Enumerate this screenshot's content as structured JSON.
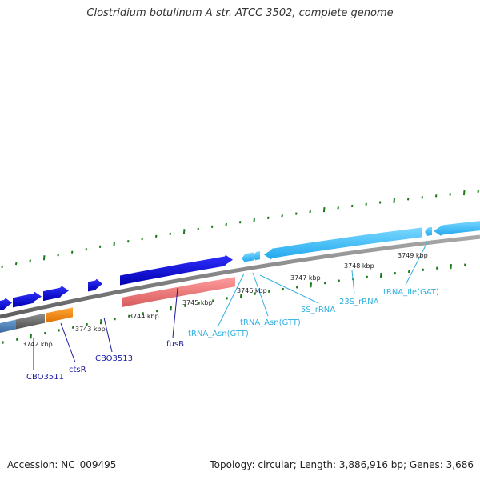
{
  "title": "Clostridium botulinum A str. ATCC 3502, complete genome",
  "footer": {
    "accession": "Accession: NC_009495",
    "summary": "Topology: circular; Length: 3,886,916 bp; Genes: 3,686"
  },
  "colors": {
    "backbone": "#808080",
    "tick": "#1a7a1a",
    "cds_forward": "#1010e0",
    "cds_reverse_pink": "#f08080",
    "rna": "#40c0ff",
    "gray_feature": "#707070",
    "steelblue_feature": "#4a80b8",
    "orange_feature": "#ff8c00",
    "gene_label": "#1a1aa0",
    "rna_label": "#30b0e0"
  },
  "scale": {
    "unit": "kbp",
    "labels": [
      "3742 kbp",
      "3743 kbp",
      "3744 kbp",
      "3745 kbp",
      "3746 kbp",
      "3747 kbp",
      "3748 kbp",
      "3749 kbp"
    ]
  },
  "genes": [
    {
      "label": "CBO3511",
      "kind": "cds"
    },
    {
      "label": "ctsR",
      "kind": "cds"
    },
    {
      "label": "CBO3513",
      "kind": "cds"
    },
    {
      "label": "fusB",
      "kind": "cds"
    },
    {
      "label": "tRNA_Asn(GTT)",
      "kind": "rna"
    },
    {
      "label": "tRNA_Asn(GTT)",
      "kind": "rna"
    },
    {
      "label": "5S_rRNA",
      "kind": "rna"
    },
    {
      "label": "23S_rRNA",
      "kind": "rna"
    },
    {
      "label": "tRNA_Ile(GAT)",
      "kind": "rna"
    }
  ]
}
